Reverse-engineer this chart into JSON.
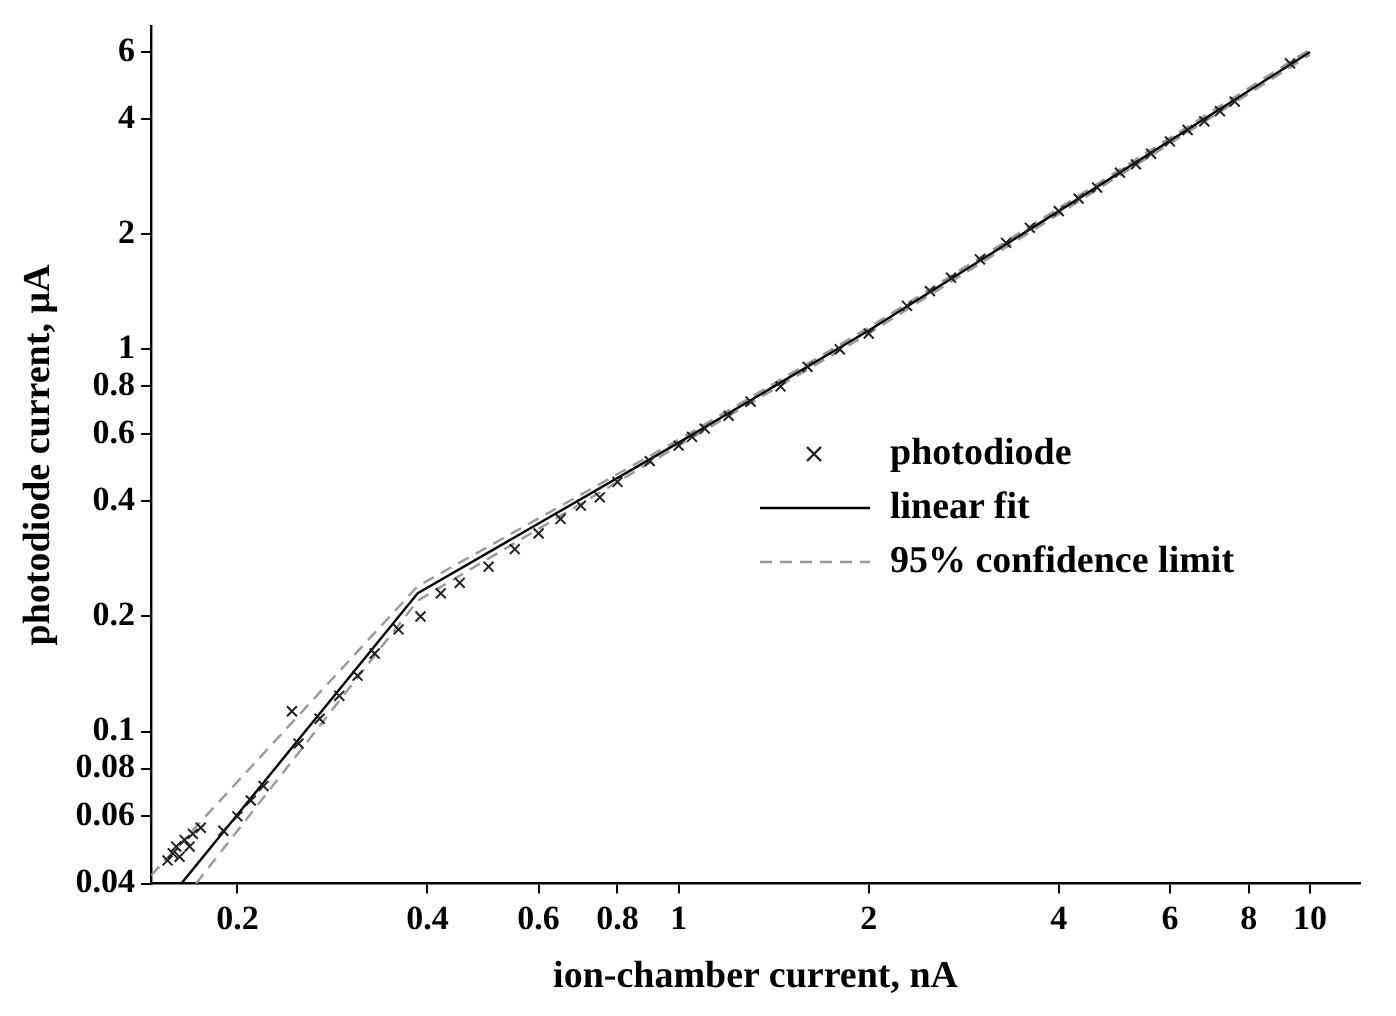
{
  "chart_data": {
    "type": "scatter",
    "xlabel": "ion-chamber current, nA",
    "ylabel": "photodiode current, μA",
    "log": "xy",
    "grid": false,
    "legend": "right",
    "xlim": [
      0.146,
      12
    ],
    "ylim": [
      0.04,
      7
    ],
    "xticks": [
      0.2,
      0.4,
      0.6,
      0.8,
      1,
      2,
      4,
      6,
      8,
      10
    ],
    "yticks": [
      0.04,
      0.06,
      0.08,
      0.1,
      0.2,
      0.4,
      0.6,
      0.8,
      1,
      2,
      4,
      6
    ],
    "series": [
      {
        "name": "photodiode",
        "type": "scatter",
        "marker": "cross",
        "color": "#222222",
        "x": [
          0.155,
          0.158,
          0.16,
          0.162,
          0.165,
          0.168,
          0.17,
          0.175,
          0.19,
          0.2,
          0.21,
          0.22,
          0.244,
          0.25,
          0.27,
          0.29,
          0.31,
          0.33,
          0.36,
          0.39,
          0.42,
          0.45,
          0.5,
          0.55,
          0.6,
          0.65,
          0.7,
          0.75,
          0.8,
          0.9,
          1.0,
          1.05,
          1.1,
          1.2,
          1.3,
          1.45,
          1.6,
          1.8,
          2.0,
          2.3,
          2.5,
          2.7,
          3.0,
          3.3,
          3.6,
          4.0,
          4.3,
          4.6,
          5.0,
          5.3,
          5.6,
          6.0,
          6.4,
          6.8,
          7.2,
          7.6,
          9.3
        ],
        "values": [
          0.046,
          0.048,
          0.05,
          0.047,
          0.052,
          0.05,
          0.054,
          0.056,
          0.055,
          0.06,
          0.066,
          0.072,
          0.113,
          0.093,
          0.108,
          0.124,
          0.14,
          0.16,
          0.185,
          0.2,
          0.23,
          0.245,
          0.27,
          0.3,
          0.33,
          0.36,
          0.39,
          0.41,
          0.45,
          0.51,
          0.56,
          0.59,
          0.62,
          0.67,
          0.73,
          0.8,
          0.9,
          1.0,
          1.1,
          1.3,
          1.42,
          1.54,
          1.72,
          1.9,
          2.08,
          2.3,
          2.48,
          2.65,
          2.9,
          3.05,
          3.25,
          3.5,
          3.75,
          3.95,
          4.2,
          4.45,
          5.6
        ]
      },
      {
        "name": "linear fit",
        "type": "line",
        "line_style": "solid",
        "marker": "none",
        "color": "#000000",
        "x": [
          0.163,
          0.386,
          1,
          2,
          4,
          10
        ],
        "values": [
          0.04,
          0.23,
          0.57,
          1.12,
          2.3,
          6.0
        ]
      },
      {
        "name": "95% confidence limit",
        "type": "line",
        "line_style": "dashed",
        "marker": "none",
        "color": "#999999",
        "x": [
          0.146,
          0.386,
          1,
          2,
          4,
          10
        ],
        "values": [
          0.042,
          0.24,
          0.58,
          1.14,
          2.34,
          6.1
        ]
      },
      {
        "type": "line",
        "line_style": "dashed",
        "marker": "none",
        "color": "#999999",
        "x": [
          0.172,
          0.386,
          1,
          2,
          4,
          10
        ],
        "values": [
          0.04,
          0.22,
          0.56,
          1.1,
          2.26,
          5.9
        ]
      }
    ]
  }
}
